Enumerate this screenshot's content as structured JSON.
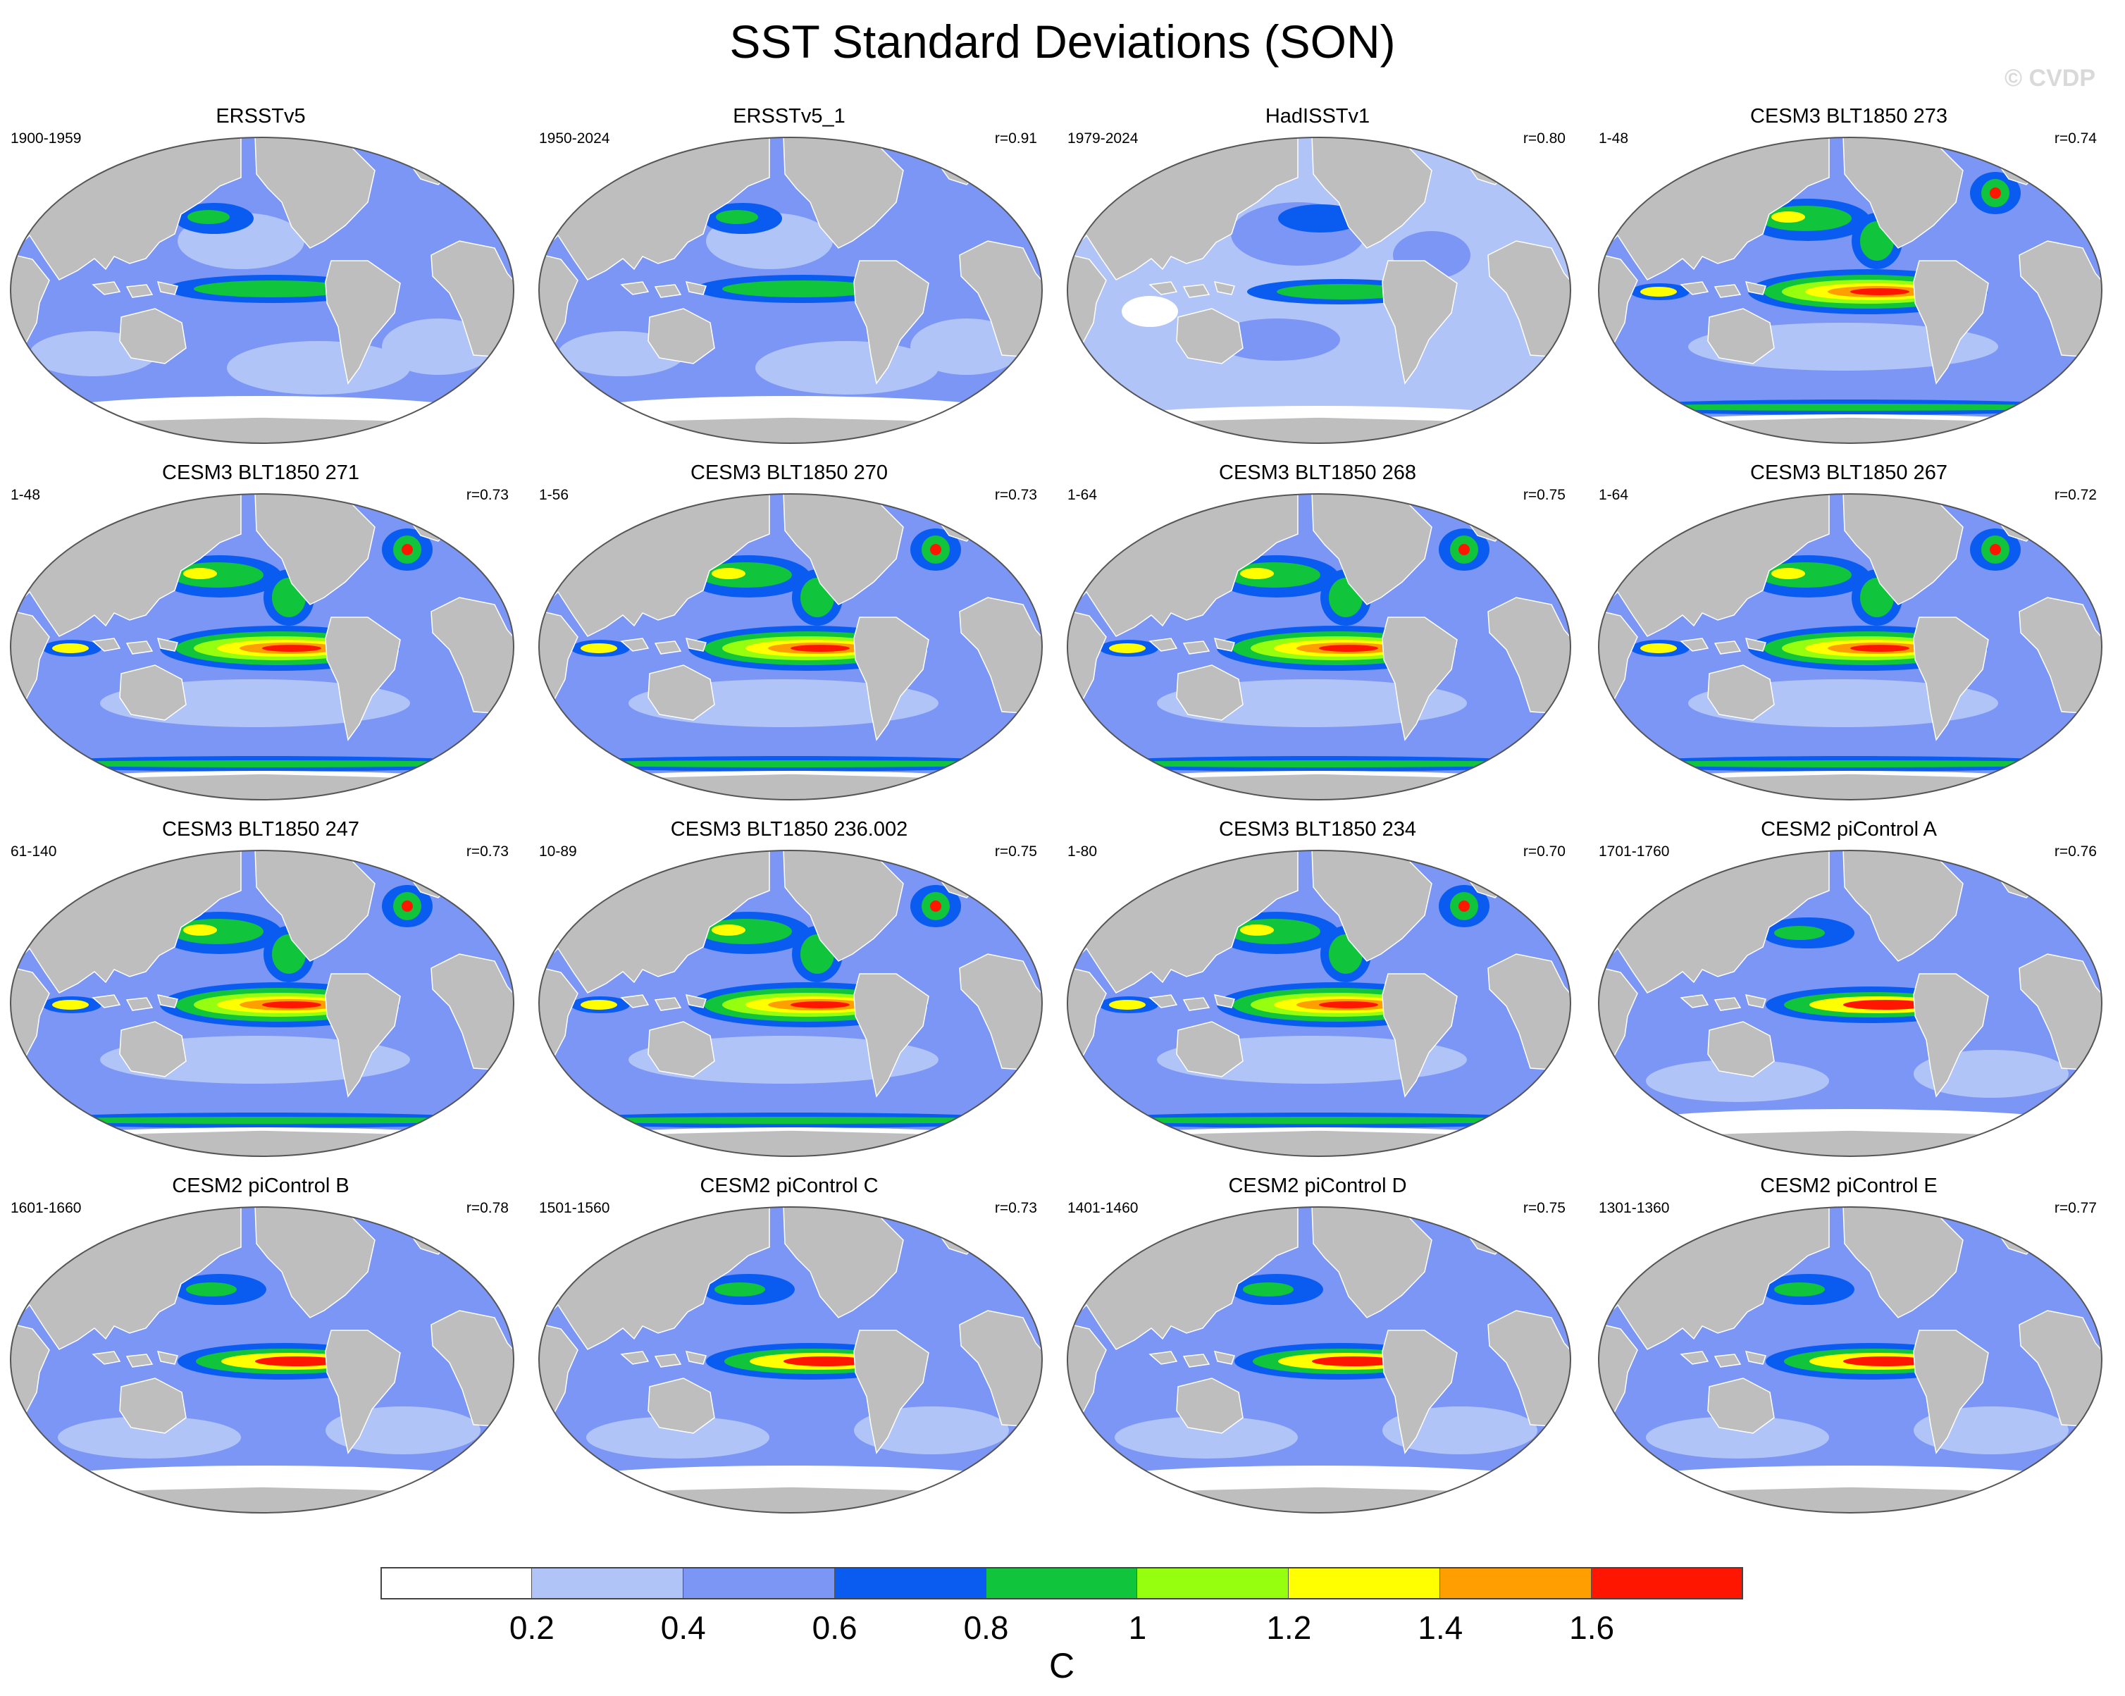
{
  "title": "SST Standard Deviations (SON)",
  "watermark": "© CVDP",
  "panels": [
    {
      "title": "ERSSTv5",
      "period": "1900-1959",
      "corr": "",
      "scheme": "obsA"
    },
    {
      "title": "ERSSTv5_1",
      "period": "1950-2024",
      "corr": "r=0.91",
      "scheme": "obsA"
    },
    {
      "title": "HadISSTv1",
      "period": "1979-2024",
      "corr": "r=0.80",
      "scheme": "obsB"
    },
    {
      "title": "CESM3 BLT1850 273",
      "period": "1-48",
      "corr": "r=0.74",
      "scheme": "cesm3"
    },
    {
      "title": "CESM3 BLT1850 271",
      "period": "1-48",
      "corr": "r=0.73",
      "scheme": "cesm3"
    },
    {
      "title": "CESM3 BLT1850 270",
      "period": "1-56",
      "corr": "r=0.73",
      "scheme": "cesm3"
    },
    {
      "title": "CESM3 BLT1850 268",
      "period": "1-64",
      "corr": "r=0.75",
      "scheme": "cesm3"
    },
    {
      "title": "CESM3 BLT1850 267",
      "period": "1-64",
      "corr": "r=0.72",
      "scheme": "cesm3"
    },
    {
      "title": "CESM3 BLT1850 247",
      "period": "61-140",
      "corr": "r=0.73",
      "scheme": "cesm3"
    },
    {
      "title": "CESM3 BLT1850 236.002",
      "period": "10-89",
      "corr": "r=0.75",
      "scheme": "cesm3"
    },
    {
      "title": "CESM3 BLT1850 234",
      "period": "1-80",
      "corr": "r=0.70",
      "scheme": "cesm3"
    },
    {
      "title": "CESM2 piControl A",
      "period": "1701-1760",
      "corr": "r=0.76",
      "scheme": "cesm2"
    },
    {
      "title": "CESM2 piControl B",
      "period": "1601-1660",
      "corr": "r=0.78",
      "scheme": "cesm2"
    },
    {
      "title": "CESM2 piControl C",
      "period": "1501-1560",
      "corr": "r=0.73",
      "scheme": "cesm2"
    },
    {
      "title": "CESM2 piControl D",
      "period": "1401-1460",
      "corr": "r=0.75",
      "scheme": "cesm2"
    },
    {
      "title": "CESM2 piControl E",
      "period": "1301-1360",
      "corr": "r=0.77",
      "scheme": "cesm2"
    }
  ],
  "colorbar": {
    "colors": [
      "#ffffff",
      "#b0c4f8",
      "#7b96f5",
      "#0a5cf0",
      "#10c43c",
      "#96ff10",
      "#ffff00",
      "#ff9e00",
      "#ff1600"
    ],
    "ticks": [
      "0.2",
      "0.4",
      "0.6",
      "0.8",
      "1",
      "1.2",
      "1.4",
      "1.6"
    ],
    "label": "C"
  },
  "colors": {
    "land": "#bebebe",
    "coast": "#ffffff",
    "outline": "#555555"
  }
}
